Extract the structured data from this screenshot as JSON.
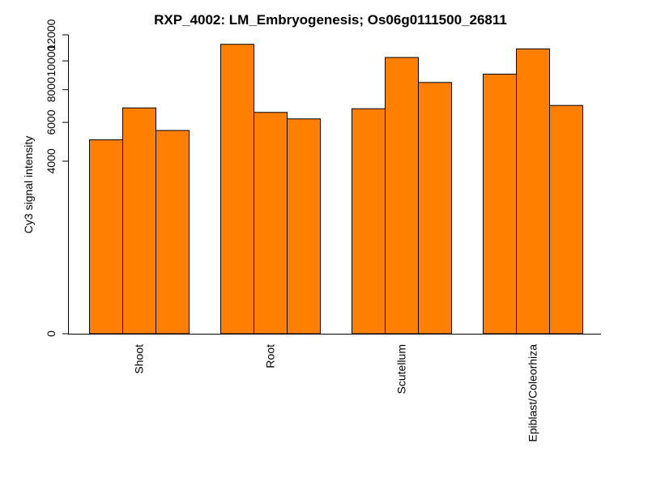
{
  "chart_data": {
    "type": "bar",
    "title": "RXP_4002: LM_Embryogenesis; Os06g0111500_26811",
    "xlabel": "",
    "ylabel": "Cy3 signal intensity",
    "y_scale": "sqrt",
    "ylim": [
      0,
      12000
    ],
    "y_ticks": [
      0,
      4000,
      6000,
      8000,
      10000,
      12000
    ],
    "y_tick_labels": [
      "0",
      "4000",
      "6000",
      "8000",
      "10000",
      "12000"
    ],
    "categories": [
      "Shoot",
      "Root",
      "Scutellum",
      "Epiblast/Coleorhiza"
    ],
    "bars_per_category": 3,
    "values": [
      [
        5050,
        6850,
        5550
      ],
      [
        11250,
        6580,
        6200
      ],
      [
        6800,
        10250,
        8480
      ],
      [
        9050,
        10900,
        7000
      ]
    ],
    "bar_color": "#FF7F00",
    "grid": false,
    "legend": "none"
  }
}
